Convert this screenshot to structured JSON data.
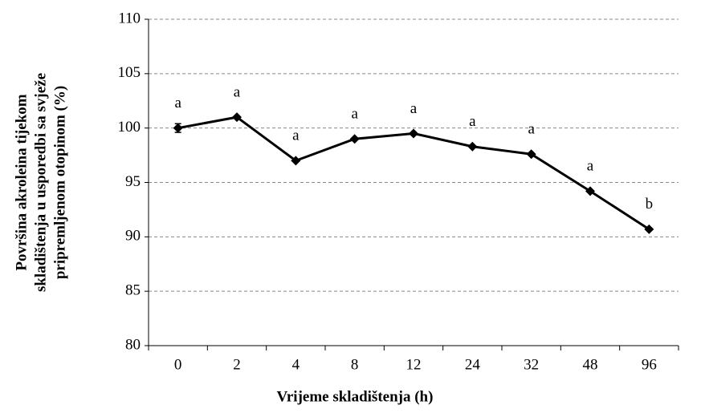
{
  "chart_data": {
    "type": "line",
    "xlabel": "Vrijeme skladištenja (h)",
    "ylabel_lines": [
      "Površina akroleina tijekom",
      "skladištenja u usporedbi sa svježe",
      "pripremljenom otopinom (%)"
    ],
    "categories": [
      "0",
      "2",
      "4",
      "8",
      "12",
      "24",
      "32",
      "48",
      "96"
    ],
    "values": [
      100,
      101,
      97,
      99,
      99.5,
      98.3,
      97.6,
      94.2,
      90.7
    ],
    "errors": [
      0.4,
      null,
      null,
      null,
      null,
      null,
      null,
      null,
      null
    ],
    "annotations": [
      "a",
      "a",
      "a",
      "a",
      "a",
      "a",
      "a",
      "a",
      "b"
    ],
    "color": "#000000",
    "ylim": [
      80,
      110
    ],
    "yticks": [
      80,
      85,
      90,
      95,
      100,
      105,
      110
    ],
    "grid": true
  }
}
